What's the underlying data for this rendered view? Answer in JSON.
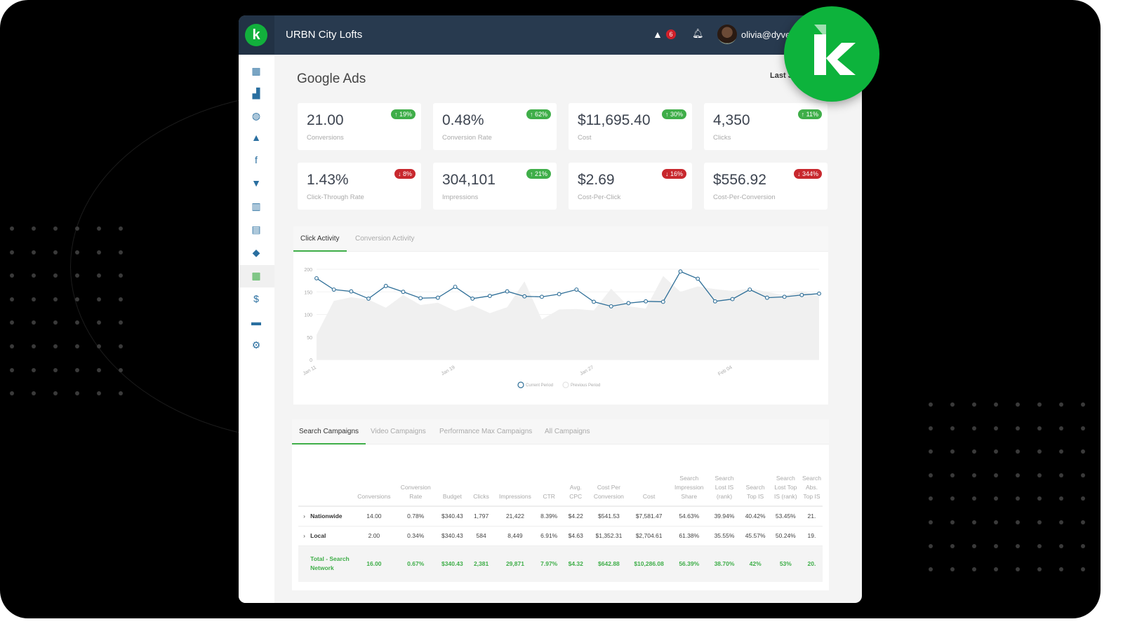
{
  "header": {
    "app_title": "URBN City Lofts",
    "alert_count": "6",
    "user_email": "olivia@dyver",
    "logo_letter": "k"
  },
  "page": {
    "title": "Google Ads",
    "date_range": "Last 3"
  },
  "kpis": [
    {
      "value": "21.00",
      "label": "Conversions",
      "change": "19%",
      "direction": "up"
    },
    {
      "value": "0.48%",
      "label": "Conversion Rate",
      "change": "62%",
      "direction": "up"
    },
    {
      "value": "$11,695.40",
      "label": "Cost",
      "change": "30%",
      "direction": "up"
    },
    {
      "value": "4,350",
      "label": "Clicks",
      "change": "11%",
      "direction": "up"
    },
    {
      "value": "1.43%",
      "label": "Click-Through Rate",
      "change": "8%",
      "direction": "down"
    },
    {
      "value": "304,101",
      "label": "Impressions",
      "change": "21%",
      "direction": "up"
    },
    {
      "value": "$2.69",
      "label": "Cost-Per-Click",
      "change": "16%",
      "direction": "down"
    },
    {
      "value": "$556.92",
      "label": "Cost-Per-Conversion",
      "change": "344%",
      "direction": "down"
    }
  ],
  "chart_tabs": [
    "Click Activity",
    "Conversion Activity"
  ],
  "chart_data": {
    "type": "line",
    "x_ticks": [
      "Jan 11",
      "Jan 19",
      "Jan 27",
      "Feb 04"
    ],
    "y_ticks": [
      "0",
      "50",
      "100",
      "150",
      "200"
    ],
    "ylim": [
      0,
      200
    ],
    "grid": true,
    "legend_placement": "bottom",
    "series": [
      {
        "name": "Current Period",
        "color": "#2f6f98",
        "values": [
          180,
          155,
          151,
          135,
          163,
          150,
          136,
          137,
          161,
          135,
          141,
          151,
          140,
          139,
          145,
          155,
          128,
          118,
          125,
          129,
          128,
          195,
          179,
          129,
          134,
          155,
          137,
          139,
          143,
          146
        ]
      },
      {
        "name": "Previous Period",
        "color": "#f0f0f0",
        "values": [
          55,
          130,
          138,
          133,
          115,
          143,
          121,
          126,
          108,
          120,
          103,
          116,
          173,
          89,
          111,
          112,
          109,
          157,
          118,
          113,
          185,
          150,
          162,
          156,
          152,
          157,
          150,
          142,
          152,
          140
        ]
      }
    ]
  },
  "table_tabs": [
    "Search Campaigns",
    "Video Campaigns",
    "Performance Max Campaigns",
    "All Campaigns"
  ],
  "table": {
    "columns": [
      "",
      "",
      "Conversions",
      "Conversion Rate",
      "Budget",
      "Clicks",
      "Impressions",
      "CTR",
      "Avg. CPC",
      "Cost Per Conversion",
      "Cost",
      "Search Impression Share",
      "Search Lost IS (rank)",
      "Search Top IS",
      "Search Lost Top IS (rank)",
      "Search Abs. Top IS"
    ],
    "rows": [
      [
        "›",
        "Nationwide",
        "14.00",
        "0.78%",
        "$340.43",
        "1,797",
        "21,422",
        "8.39%",
        "$4.22",
        "$541.53",
        "$7,581.47",
        "54.63%",
        "39.94%",
        "40.42%",
        "53.45%",
        "21."
      ],
      [
        "›",
        "Local",
        "2.00",
        "0.34%",
        "$340.43",
        "584",
        "8,449",
        "6.91%",
        "$4.63",
        "$1,352.31",
        "$2,704.61",
        "61.38%",
        "35.55%",
        "45.57%",
        "50.24%",
        "19."
      ]
    ],
    "total": [
      "",
      "Total - Search Network",
      "16.00",
      "0.67%",
      "$340.43",
      "2,381",
      "29,871",
      "7.97%",
      "$4.32",
      "$642.88",
      "$10,286.08",
      "56.39%",
      "38.70%",
      "42%",
      "53%",
      "20."
    ]
  }
}
